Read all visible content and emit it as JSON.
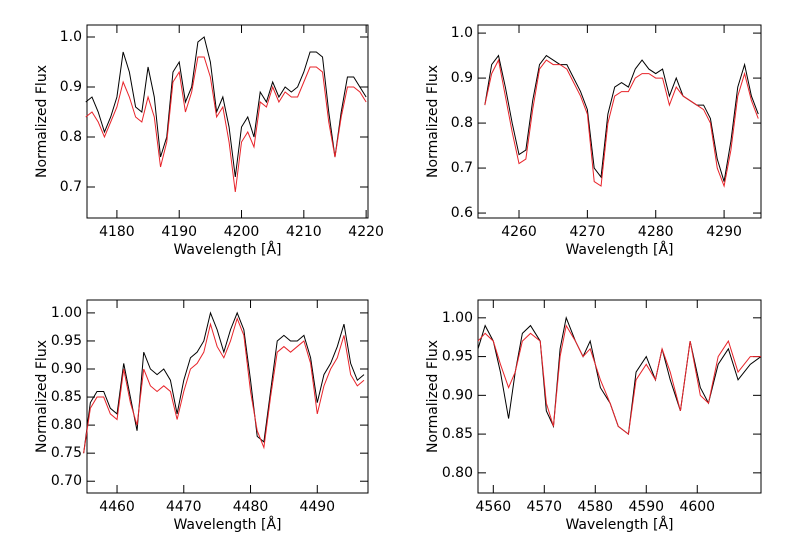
{
  "chart_data": [
    {
      "type": "line",
      "x_label": "Wavelength [Å]",
      "y_label": "Normalized Flux",
      "x": [
        4175,
        4176,
        4177,
        4178,
        4179,
        4180,
        4181,
        4182,
        4183,
        4184,
        4185,
        4186,
        4187,
        4188,
        4189,
        4190,
        4191,
        4192,
        4193,
        4194,
        4195,
        4196,
        4197,
        4198,
        4199,
        4200,
        4201,
        4202,
        4203,
        4204,
        4205,
        4206,
        4207,
        4208,
        4209,
        4210,
        4211,
        4212,
        4213,
        4214,
        4215,
        4216,
        4217,
        4218,
        4219,
        4220
      ],
      "series": [
        {
          "color": "#000000",
          "values": [
            0.87,
            0.88,
            0.85,
            0.81,
            0.84,
            0.88,
            0.97,
            0.93,
            0.86,
            0.85,
            0.94,
            0.88,
            0.76,
            0.8,
            0.93,
            0.95,
            0.87,
            0.9,
            0.99,
            1.0,
            0.95,
            0.85,
            0.88,
            0.82,
            0.72,
            0.82,
            0.84,
            0.8,
            0.89,
            0.87,
            0.91,
            0.88,
            0.9,
            0.89,
            0.9,
            0.93,
            0.97,
            0.97,
            0.96,
            0.85,
            0.76,
            0.85,
            0.92,
            0.92,
            0.9,
            0.88
          ]
        },
        {
          "color": "#e8242a",
          "values": [
            0.84,
            0.85,
            0.83,
            0.8,
            0.83,
            0.86,
            0.91,
            0.88,
            0.84,
            0.83,
            0.88,
            0.84,
            0.74,
            0.79,
            0.91,
            0.93,
            0.85,
            0.89,
            0.96,
            0.96,
            0.92,
            0.84,
            0.86,
            0.79,
            0.69,
            0.79,
            0.81,
            0.78,
            0.87,
            0.86,
            0.9,
            0.87,
            0.89,
            0.88,
            0.88,
            0.91,
            0.94,
            0.94,
            0.93,
            0.83,
            0.76,
            0.84,
            0.9,
            0.9,
            0.89,
            0.87
          ]
        }
      ],
      "xlim": [
        4175.2,
        4220.3
      ],
      "ylim": [
        0.638,
        1.024
      ],
      "xticks": [
        4180,
        4190,
        4200,
        4210,
        4220
      ],
      "yticks": [
        0.7,
        0.8,
        0.9,
        {
          "value": 1,
          "label": "1.0"
        }
      ]
    },
    {
      "type": "line",
      "x_label": "Wavelength [Å]",
      "y_label": "Normalized Flux",
      "x": [
        4255,
        4256,
        4257,
        4258,
        4259,
        4260,
        4261,
        4262,
        4263,
        4264,
        4265,
        4266,
        4267,
        4268,
        4269,
        4270,
        4271,
        4272,
        4273,
        4274,
        4275,
        4276,
        4277,
        4278,
        4279,
        4280,
        4281,
        4282,
        4283,
        4284,
        4285,
        4286,
        4287,
        4288,
        4289,
        4290,
        4291,
        4292,
        4293,
        4294,
        4295
      ],
      "series": [
        {
          "color": "#000000",
          "values": [
            0.84,
            0.93,
            0.95,
            0.88,
            0.8,
            0.73,
            0.74,
            0.85,
            0.93,
            0.95,
            0.94,
            0.93,
            0.93,
            0.9,
            0.87,
            0.83,
            0.7,
            0.68,
            0.82,
            0.88,
            0.89,
            0.88,
            0.92,
            0.94,
            0.92,
            0.91,
            0.92,
            0.86,
            0.9,
            0.86,
            0.85,
            0.84,
            0.84,
            0.81,
            0.72,
            0.67,
            0.76,
            0.88,
            0.93,
            0.86,
            0.82
          ]
        },
        {
          "color": "#e8242a",
          "values": [
            0.84,
            0.91,
            0.94,
            0.86,
            0.78,
            0.71,
            0.72,
            0.83,
            0.92,
            0.94,
            0.93,
            0.93,
            0.92,
            0.89,
            0.86,
            0.82,
            0.67,
            0.66,
            0.8,
            0.86,
            0.87,
            0.87,
            0.9,
            0.91,
            0.91,
            0.9,
            0.9,
            0.84,
            0.88,
            0.86,
            0.85,
            0.84,
            0.83,
            0.8,
            0.7,
            0.66,
            0.74,
            0.86,
            0.91,
            0.85,
            0.81
          ]
        }
      ],
      "xlim": [
        4254.0,
        4295.4
      ],
      "ylim": [
        0.589,
        1.018
      ],
      "xticks": [
        4260,
        4270,
        4280,
        4290
      ],
      "yticks": [
        0.6,
        0.7,
        0.8,
        0.9,
        {
          "value": 1,
          "label": "1.0"
        }
      ]
    },
    {
      "type": "line",
      "x_label": "Wavelength [Å]",
      "y_label": "Normalized Flux",
      "x": [
        4455,
        4456,
        4457,
        4458,
        4459,
        4460,
        4461,
        4462,
        4463,
        4464,
        4465,
        4466,
        4467,
        4468,
        4469,
        4470,
        4471,
        4472,
        4473,
        4474,
        4475,
        4476,
        4477,
        4478,
        4479,
        4480,
        4481,
        4482,
        4483,
        4484,
        4485,
        4486,
        4487,
        4488,
        4489,
        4490,
        4491,
        4492,
        4493,
        4494,
        4495,
        4496,
        4497
      ],
      "series": [
        {
          "color": "#000000",
          "values": [
            0.75,
            0.84,
            0.86,
            0.86,
            0.83,
            0.82,
            0.91,
            0.85,
            0.79,
            0.93,
            0.9,
            0.89,
            0.9,
            0.88,
            0.82,
            0.88,
            0.92,
            0.93,
            0.95,
            1.0,
            0.97,
            0.93,
            0.97,
            1.0,
            0.97,
            0.88,
            0.78,
            0.77,
            0.86,
            0.95,
            0.96,
            0.95,
            0.95,
            0.96,
            0.92,
            0.84,
            0.89,
            0.91,
            0.94,
            0.98,
            0.91,
            0.88,
            0.89
          ]
        },
        {
          "color": "#e8242a",
          "values": [
            0.75,
            0.83,
            0.85,
            0.85,
            0.82,
            0.81,
            0.9,
            0.84,
            0.8,
            0.9,
            0.87,
            0.86,
            0.87,
            0.86,
            0.81,
            0.86,
            0.9,
            0.91,
            0.93,
            0.98,
            0.94,
            0.92,
            0.95,
            0.99,
            0.96,
            0.86,
            0.79,
            0.76,
            0.85,
            0.93,
            0.94,
            0.93,
            0.94,
            0.95,
            0.91,
            0.82,
            0.87,
            0.9,
            0.92,
            0.96,
            0.89,
            0.87,
            0.88
          ]
        }
      ],
      "xlim": [
        4455.5,
        4497.6
      ],
      "ylim": [
        0.679,
        1.023
      ],
      "xticks": [
        4460,
        4470,
        4480,
        4490
      ],
      "yticks": [
        {
          "value": 0.7,
          "label": "0.70"
        },
        {
          "value": 0.75,
          "label": "0.75"
        },
        {
          "value": 0.8,
          "label": "0.80"
        },
        {
          "value": 0.85,
          "label": "0.85"
        },
        {
          "value": 0.9,
          "label": "0.90"
        },
        {
          "value": 0.95,
          "label": "0.95"
        },
        {
          "value": 1,
          "label": "1.00"
        }
      ]
    },
    {
      "type": "line",
      "x_label": "Wavelength [Å]",
      "y_label": "Normalized Flux",
      "x": [
        4557,
        4558.4,
        4560,
        4561.4,
        4563,
        4564.3,
        4565.7,
        4567.3,
        4569.2,
        4570.4,
        4571.8,
        4573.1,
        4574.3,
        4576.1,
        4577.6,
        4579,
        4581,
        4582.9,
        4584.5,
        4586.5,
        4588,
        4590,
        4591.8,
        4593.1,
        4594.7,
        4596.7,
        4598.6,
        4600.6,
        4602.2,
        4604.1,
        4606.1,
        4608,
        4610.4,
        4612.5
      ],
      "series": [
        {
          "color": "#000000",
          "values": [
            0.96,
            0.99,
            0.97,
            0.93,
            0.87,
            0.93,
            0.98,
            0.99,
            0.97,
            0.88,
            0.86,
            0.96,
            1.0,
            0.97,
            0.95,
            0.97,
            0.91,
            0.89,
            0.86,
            0.85,
            0.93,
            0.95,
            0.92,
            0.96,
            0.92,
            0.88,
            0.97,
            0.91,
            0.89,
            0.94,
            0.96,
            0.92,
            0.94,
            0.95
          ]
        },
        {
          "color": "#e8242a",
          "values": [
            0.97,
            0.98,
            0.97,
            0.94,
            0.91,
            0.93,
            0.97,
            0.98,
            0.97,
            0.89,
            0.86,
            0.95,
            0.99,
            0.97,
            0.95,
            0.96,
            0.92,
            0.89,
            0.86,
            0.85,
            0.92,
            0.94,
            0.92,
            0.96,
            0.93,
            0.88,
            0.97,
            0.9,
            0.89,
            0.95,
            0.97,
            0.93,
            0.95,
            0.95
          ]
        }
      ],
      "xlim": [
        4557,
        4612.5
      ],
      "ylim": [
        0.774,
        1.023
      ],
      "xticks": [
        4560,
        4570,
        4580,
        4590,
        4600
      ],
      "yticks": [
        {
          "value": 0.8,
          "label": "0.80"
        },
        {
          "value": 0.85,
          "label": "0.85"
        },
        {
          "value": 0.9,
          "label": "0.90"
        },
        {
          "value": 0.95,
          "label": "0.95"
        },
        {
          "value": 1,
          "label": "1.00"
        }
      ]
    }
  ]
}
